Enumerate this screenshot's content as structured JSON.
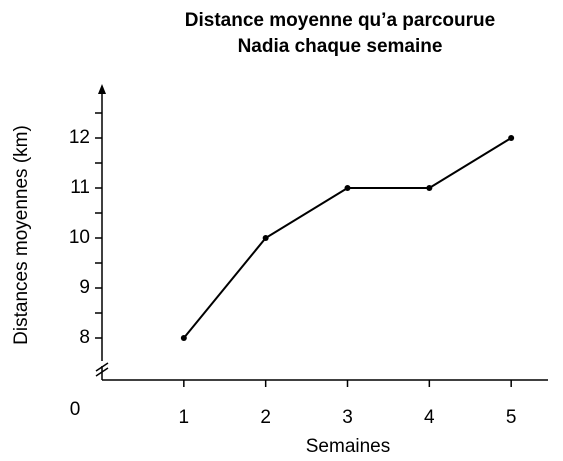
{
  "chart_data": {
    "type": "line",
    "title": [
      "Distance moyenne qu’a parcourue",
      "Nadia chaque semaine"
    ],
    "x_label": "Semaines",
    "y_label": "Distances moyennes (km)",
    "origin_label": "0",
    "x": [
      1,
      2,
      3,
      4,
      5
    ],
    "series": [
      {
        "color": "#000000",
        "values": [
          8,
          10,
          11,
          11,
          12
        ]
      }
    ],
    "xlim": [
      0,
      5.45
    ],
    "xticks": [
      1,
      2,
      3,
      4,
      5
    ],
    "ylim": [
      7.16,
      13
    ],
    "yticks": [
      8,
      9,
      10,
      11,
      12
    ],
    "minor_yticks": [
      8.5,
      9.5,
      10.5,
      11.5,
      12.5
    ],
    "y_axis_break": true,
    "grid": false
  }
}
